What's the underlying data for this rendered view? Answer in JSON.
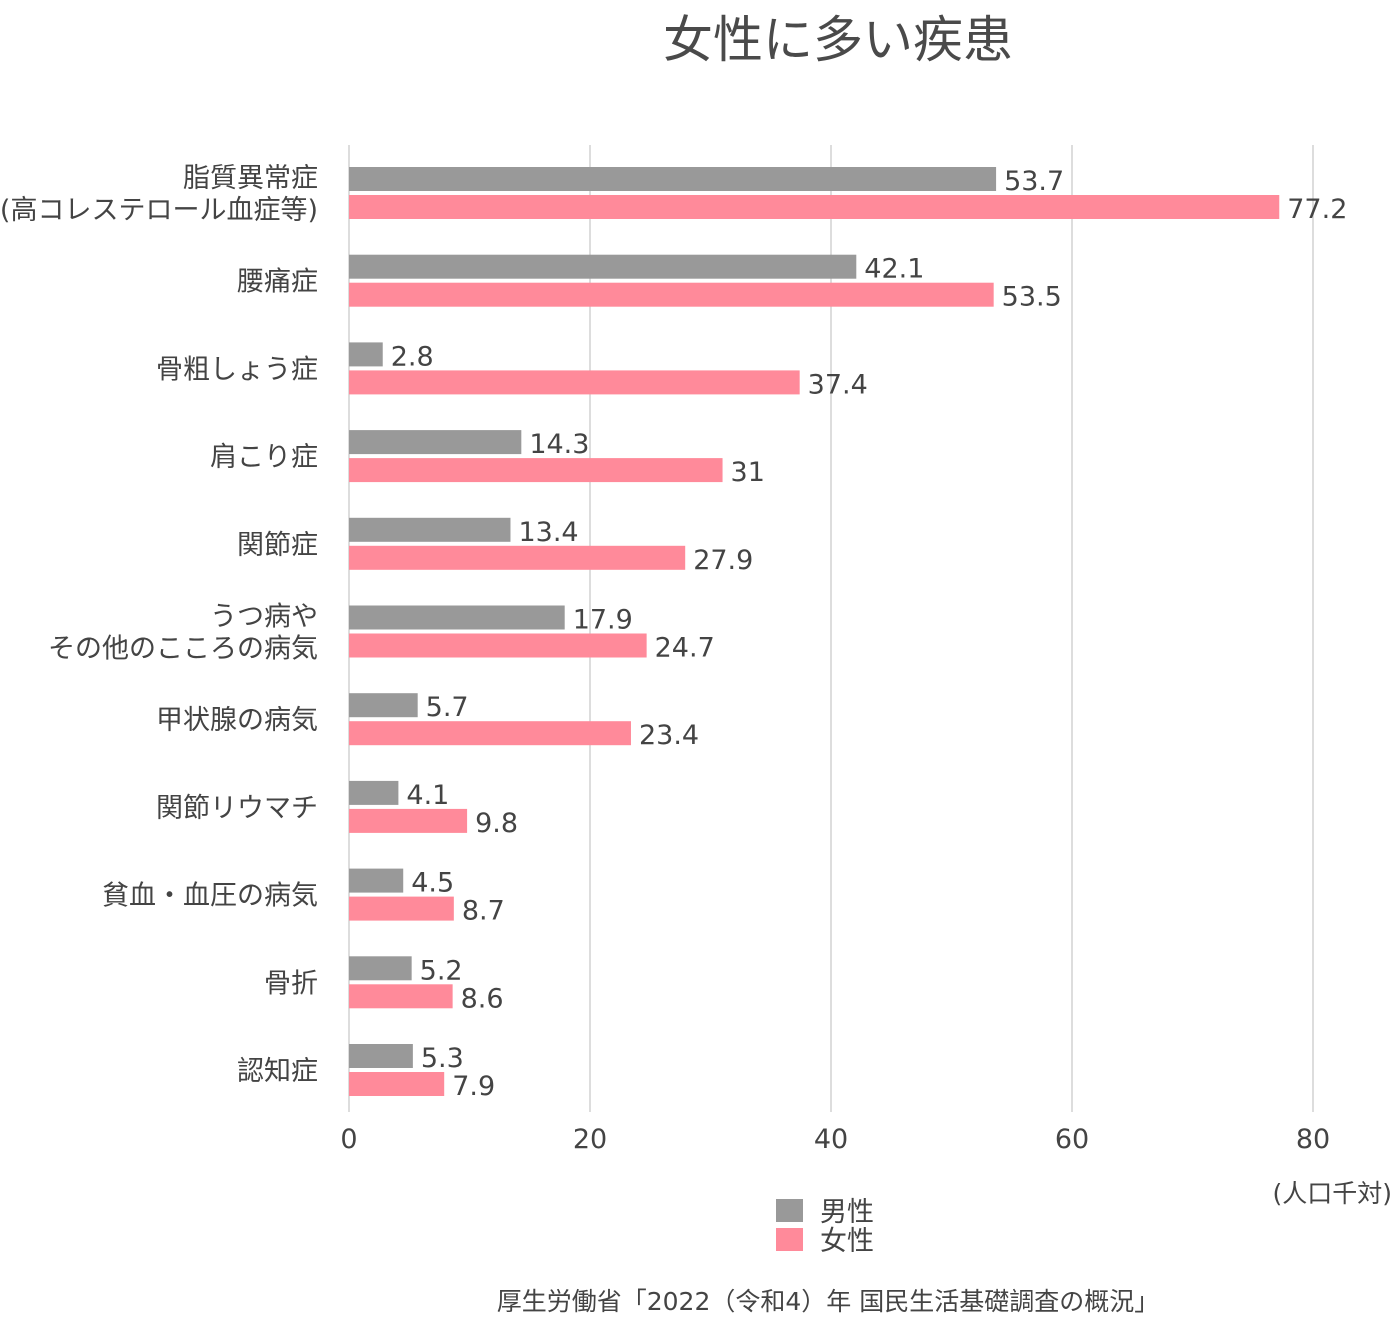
{
  "chart_data": {
    "type": "bar",
    "orientation": "horizontal",
    "title": "女性に多い疾患",
    "categories": [
      [
        "脂質異常症",
        "(高コレステロール血症等)"
      ],
      [
        "腰痛症"
      ],
      [
        "骨粗しょう症"
      ],
      [
        "肩こり症"
      ],
      [
        "関節症"
      ],
      [
        "うつ病や",
        "その他のこころの病気"
      ],
      [
        "甲状腺の病気"
      ],
      [
        "関節リウマチ"
      ],
      [
        "貧血・血圧の病気"
      ],
      [
        "骨折"
      ],
      [
        "認知症"
      ]
    ],
    "series": [
      {
        "name": "男性",
        "color": "#999999",
        "values": [
          53.7,
          42.1,
          2.8,
          14.3,
          13.4,
          17.9,
          5.7,
          4.1,
          4.5,
          5.2,
          5.3
        ],
        "labels": [
          "53.7",
          "42.1",
          "2.8",
          "14.3",
          "13.4",
          "17.9",
          "5.7",
          "4.1",
          "4.5",
          "5.2",
          "5.3"
        ]
      },
      {
        "name": "女性",
        "color": "#ff8a9a",
        "values": [
          77.2,
          53.5,
          37.4,
          31,
          27.9,
          24.7,
          23.4,
          9.8,
          8.7,
          8.6,
          7.9
        ],
        "labels": [
          "77.2",
          "53.5",
          "37.4",
          "31",
          "27.9",
          "24.7",
          "23.4",
          "9.8",
          "8.7",
          "8.6",
          "7.9"
        ]
      }
    ],
    "xlim": [
      0,
      80
    ],
    "xticks": [
      0,
      20,
      40,
      60,
      80
    ],
    "xtick_labels": [
      "0",
      "20",
      "40",
      "60",
      "80"
    ],
    "unit": "(人口千対)",
    "grid": true,
    "legend_position": "bottom"
  },
  "source": "厚生労働省「2022（令和4）年 国民生活基礎調査の概況」"
}
